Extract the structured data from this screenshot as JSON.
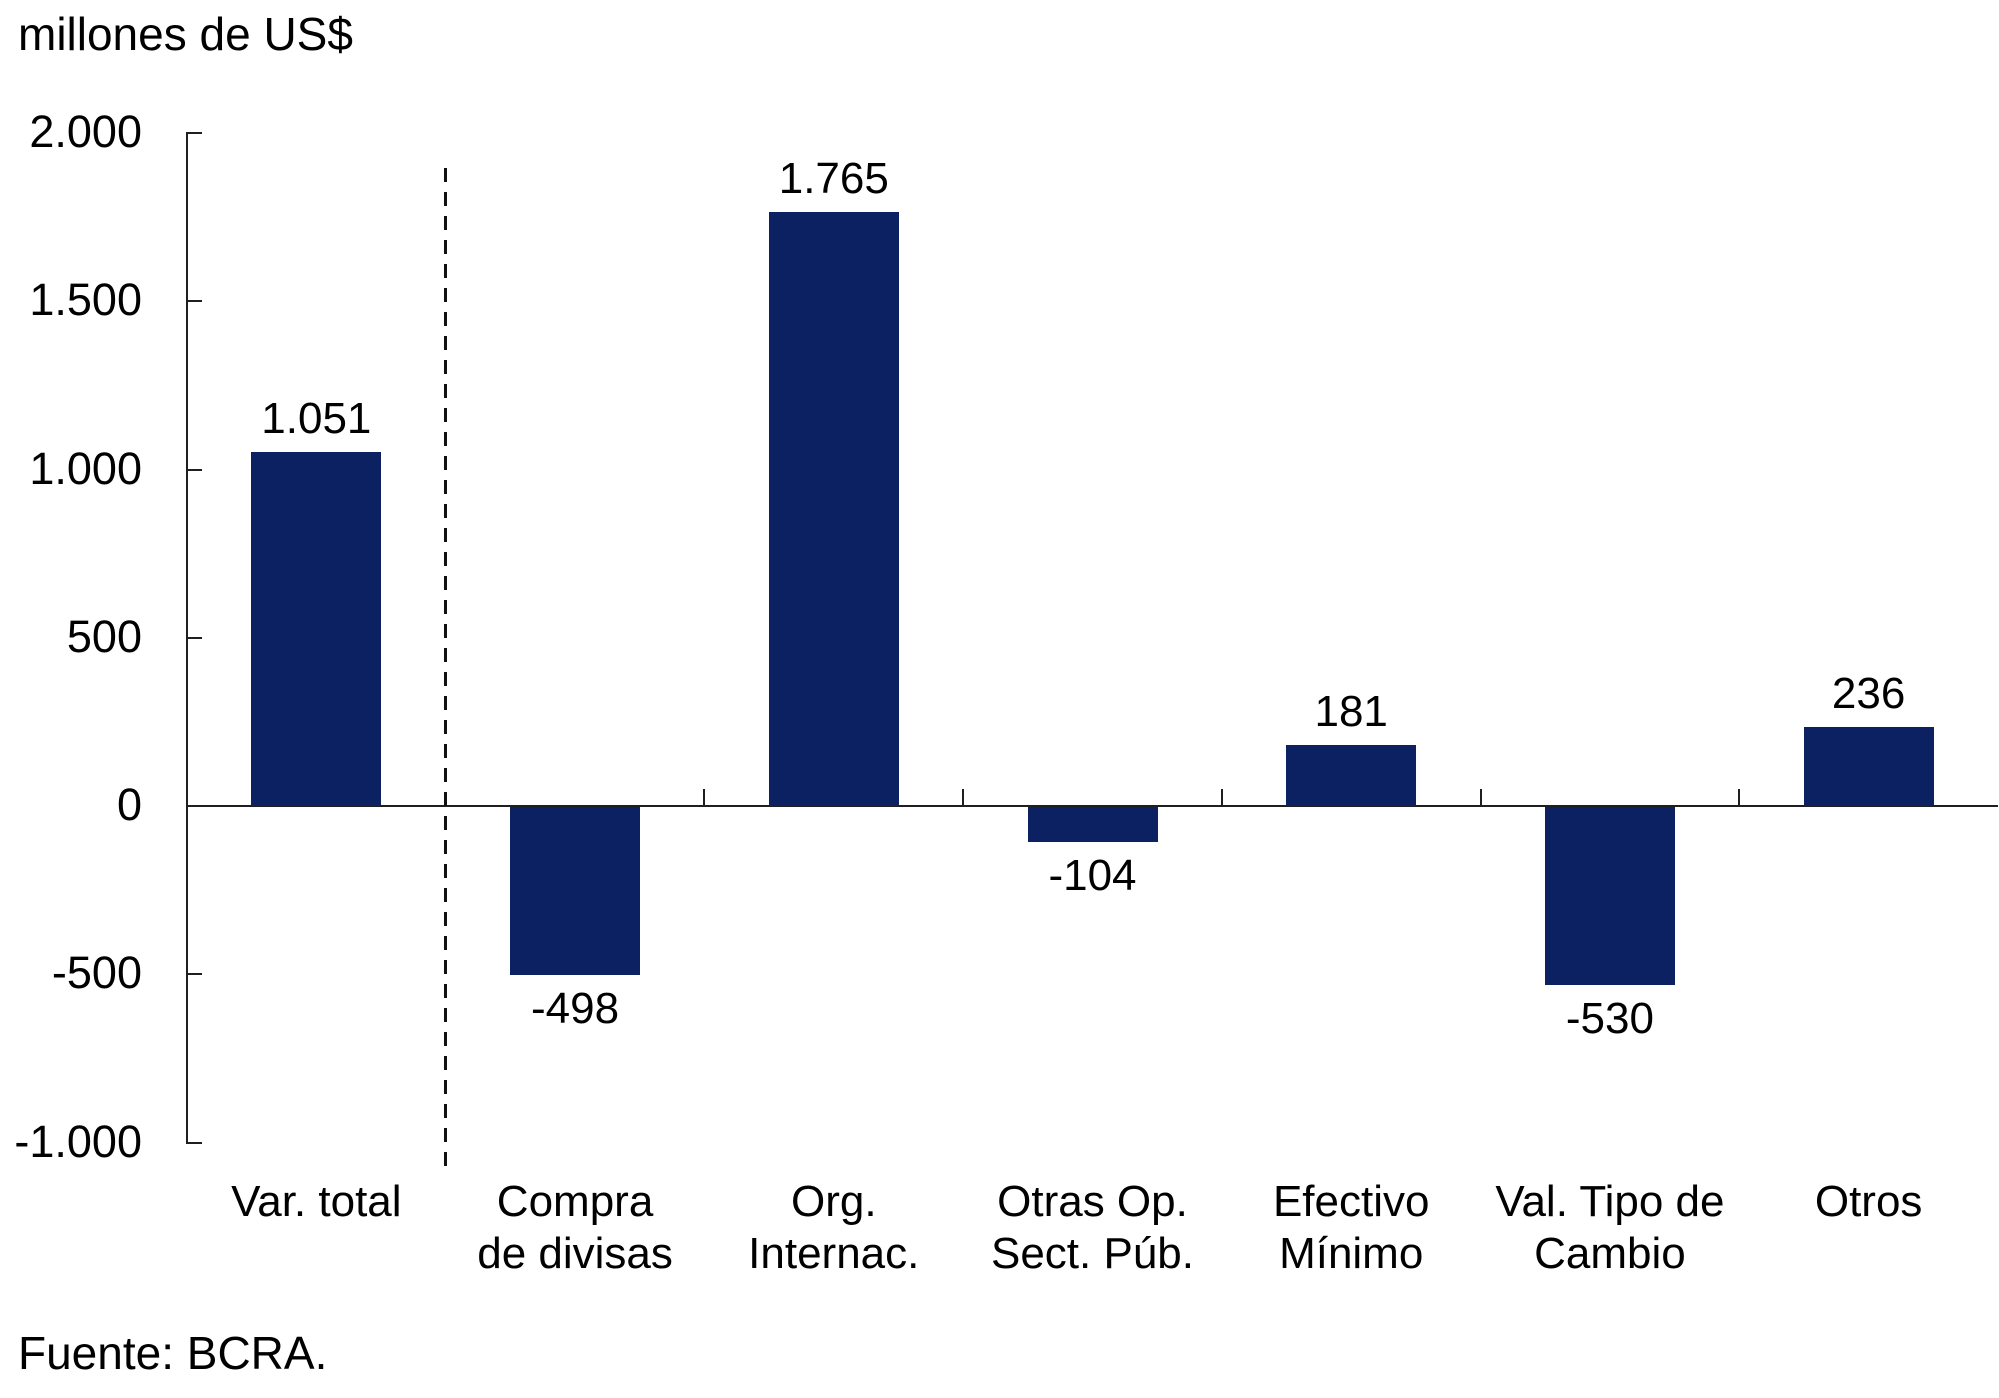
{
  "chart": {
    "title": "millones de US$",
    "source": "Fuente: BCRA."
  },
  "chart_data": {
    "type": "bar",
    "title": "millones de US$",
    "ylabel": "millones de US$",
    "xlabel": "",
    "categories": [
      "Var. total",
      "Compra de divisas",
      "Org. Internac.",
      "Otras Op. Sect. Púb.",
      "Efectivo Mínimo",
      "Val. Tipo de Cambio",
      "Otros"
    ],
    "category_lines": [
      [
        "Var. total"
      ],
      [
        "Compra",
        "de divisas"
      ],
      [
        "Org.",
        "Internac."
      ],
      [
        "Otras Op.",
        "Sect. Púb."
      ],
      [
        "Efectivo",
        "Mínimo"
      ],
      [
        "Val. Tipo de",
        "Cambio"
      ],
      [
        "Otros"
      ]
    ],
    "values": [
      1051,
      -498,
      1765,
      -104,
      181,
      -530,
      236
    ],
    "value_labels": [
      "1.051",
      "-498",
      "1.765",
      "-104",
      "181",
      "-530",
      "236"
    ],
    "ylim": [
      -1000,
      2000
    ],
    "ytick_values": [
      2000,
      1500,
      1000,
      500,
      0,
      -500,
      -1000
    ],
    "ytick_labels": [
      "2.000",
      "1.500",
      "1.000",
      "500",
      "0",
      "-500",
      "-1.000"
    ],
    "separator_after_index": 0,
    "grid": false,
    "legend": false,
    "bar_color": "#0b2161",
    "axis_color": "#1f1f1f",
    "text_color": "#000000",
    "source": "Fuente: BCRA."
  }
}
